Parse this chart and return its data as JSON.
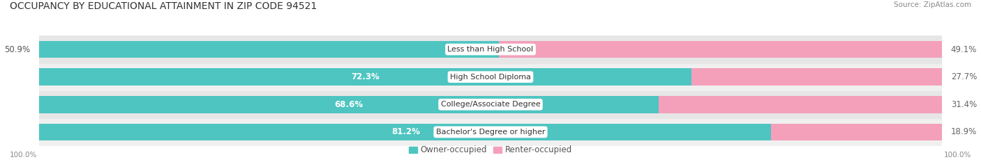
{
  "title": "OCCUPANCY BY EDUCATIONAL ATTAINMENT IN ZIP CODE 94521",
  "source": "Source: ZipAtlas.com",
  "categories": [
    "Less than High School",
    "High School Diploma",
    "College/Associate Degree",
    "Bachelor's Degree or higher"
  ],
  "owner_pct": [
    50.9,
    72.3,
    68.6,
    81.2
  ],
  "renter_pct": [
    49.1,
    27.7,
    31.4,
    18.9
  ],
  "owner_color": "#4EC5C1",
  "renter_color": "#F4A0BB",
  "row_bg_colors": [
    "#F0F0F0",
    "#E6E6E6",
    "#F0F0F0",
    "#E6E6E6"
  ],
  "axis_label_left": "100.0%",
  "axis_label_right": "100.0%",
  "title_fontsize": 10,
  "source_fontsize": 7.5,
  "bar_label_fontsize": 8.5,
  "category_fontsize": 8,
  "legend_fontsize": 8.5
}
